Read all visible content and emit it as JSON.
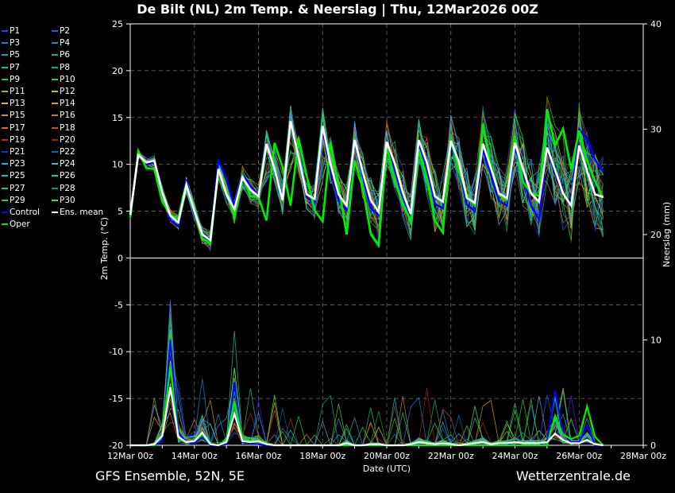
{
  "header": {
    "title": "De Bilt  (NL)  2m Temp. & Neerslag | Thu, 12Mar2026 00Z"
  },
  "footer": {
    "left": "GFS Ensemble, 52N, 5E",
    "right": "Wetterzentrale.de"
  },
  "legend": [
    {
      "label": "P1",
      "color": "#2a3cff"
    },
    {
      "label": "P2",
      "color": "#1a5cff"
    },
    {
      "label": "P3",
      "color": "#2a7ad8"
    },
    {
      "label": "P4",
      "color": "#1f86c8"
    },
    {
      "label": "P5",
      "color": "#18a0c8"
    },
    {
      "label": "P6",
      "color": "#13b0a0"
    },
    {
      "label": "P7",
      "color": "#16c090"
    },
    {
      "label": "P8",
      "color": "#10b070"
    },
    {
      "label": "P9",
      "color": "#18c850"
    },
    {
      "label": "P10",
      "color": "#20d820"
    },
    {
      "label": "P11",
      "color": "#88c020"
    },
    {
      "label": "P12",
      "color": "#c0c020"
    },
    {
      "label": "P13",
      "color": "#d8c030"
    },
    {
      "label": "P14",
      "color": "#d8a020"
    },
    {
      "label": "P15",
      "color": "#c89050"
    },
    {
      "label": "P16",
      "color": "#c08040"
    },
    {
      "label": "P17",
      "color": "#d07020"
    },
    {
      "label": "P18",
      "color": "#c05020"
    },
    {
      "label": "P19",
      "color": "#b03010"
    },
    {
      "label": "P20",
      "color": "#a02010"
    },
    {
      "label": "P21",
      "color": "#1830d0"
    },
    {
      "label": "P22",
      "color": "#1060c0"
    },
    {
      "label": "P23",
      "color": "#3aa0ff"
    },
    {
      "label": "P24",
      "color": "#60a8d8"
    },
    {
      "label": "P25",
      "color": "#20b8c8"
    },
    {
      "label": "P26",
      "color": "#20c8b0"
    },
    {
      "label": "P27",
      "color": "#20c880"
    },
    {
      "label": "P28",
      "color": "#10a050"
    },
    {
      "label": "P29",
      "color": "#30d040"
    },
    {
      "label": "P30",
      "color": "#40e040"
    },
    {
      "label": "Control",
      "color": "#0000ff"
    },
    {
      "label": "Ens. mean",
      "color": "#ffffff"
    },
    {
      "label": "Oper",
      "color": "#00ee00"
    }
  ],
  "chart_data": {
    "type": "line",
    "xlabel": "Date (UTC)",
    "ylabel": "2m Temp. (°C)",
    "y2label": "Neerslag (mm)",
    "x_tick_labels": [
      "12Mar 00z",
      "14Mar 00z",
      "16Mar 00z",
      "18Mar 00z",
      "20Mar 00z",
      "22Mar 00z",
      "24Mar 00z",
      "26Mar 00z",
      "28Mar 00z"
    ],
    "ylim": [
      -20,
      25
    ],
    "y_ticks": [
      25,
      20,
      15,
      10,
      5,
      0,
      -5,
      -10,
      -15,
      -20
    ],
    "y2lim": [
      0,
      40
    ],
    "y2_ticks": [
      40,
      30,
      20,
      10,
      0
    ],
    "step_hours": 6,
    "x_range_hours": [
      0,
      384
    ],
    "temp_mean": [
      4.6,
      11.0,
      10.2,
      10.4,
      7.0,
      4.5,
      3.8,
      7.8,
      5.0,
      2.5,
      1.9,
      9.5,
      6.8,
      5.2,
      8.6,
      7.3,
      6.6,
      12.2,
      9.5,
      6.2,
      14.6,
      10.7,
      6.8,
      6.3,
      14.1,
      10.0,
      6.8,
      5.6,
      12.6,
      9.2,
      6.2,
      4.9,
      12.4,
      10.1,
      7.0,
      4.7,
      12.6,
      10.2,
      6.6,
      6.0,
      12.5,
      10.3,
      6.4,
      5.9,
      12.2,
      9.6,
      6.9,
      6.4,
      12.3,
      9.5,
      6.9,
      6.0,
      11.8,
      9.4,
      6.9,
      5.6,
      12.0,
      9.3,
      6.8,
      6.5
    ],
    "temp_control": [
      4.6,
      11.0,
      10.0,
      10.2,
      7.2,
      4.0,
      3.4,
      8.4,
      4.6,
      2.3,
      1.8,
      10.4,
      8.5,
      5.5,
      9.0,
      7.6,
      6.7,
      12.3,
      9.5,
      6.5,
      14.4,
      10.6,
      6.5,
      5.8,
      13.8,
      9.5,
      6.1,
      5.1,
      12.5,
      8.8,
      5.3,
      4.6,
      12.2,
      9.6,
      6.3,
      4.1,
      12.1,
      9.7,
      5.8,
      5.3,
      12.0,
      9.6,
      5.7,
      5.0,
      11.6,
      8.9,
      6.1,
      5.6,
      12.0,
      8.8,
      5.6,
      4.1,
      11.8,
      9.0,
      6.9,
      5.7,
      13.7,
      12.8,
      10.5,
      9.2
    ],
    "temp_oper": [
      4.3,
      11.4,
      9.6,
      9.5,
      6.0,
      4.6,
      4.2,
      7.9,
      4.9,
      2.1,
      1.6,
      9.5,
      7.0,
      4.4,
      8.8,
      6.6,
      6.5,
      4.0,
      12.3,
      9.7,
      5.6,
      12.8,
      8.8,
      5.1,
      3.9,
      12.3,
      7.6,
      2.5,
      10.4,
      7.5,
      2.6,
      1.4,
      11.9,
      8.3,
      5.9,
      3.9,
      11.6,
      8.5,
      4.0,
      2.7,
      12.6,
      9.4,
      6.7,
      5.6,
      14.3,
      9.7,
      6.8,
      6.2,
      13.0,
      8.1,
      7.0,
      6.6,
      15.9,
      12.0,
      13.8,
      9.5,
      13.6,
      10.4,
      8.2,
      6.4
    ],
    "precip_mean": [
      0,
      0,
      0,
      0.1,
      0.9,
      5.5,
      0.8,
      0.3,
      0.4,
      1.2,
      0.1,
      0,
      0.3,
      3.0,
      0.4,
      0.3,
      0.4,
      0.1,
      0,
      0,
      0,
      0,
      0,
      0,
      0,
      0,
      0,
      0.2,
      0,
      0,
      0.1,
      0.1,
      0,
      0,
      0,
      0.1,
      0.3,
      0.2,
      0.1,
      0.2,
      0.1,
      0,
      0.1,
      0.2,
      0.3,
      0.1,
      0.2,
      0.2,
      0.3,
      0.2,
      0.2,
      0.2,
      0.3,
      1.1,
      0.5,
      0.2,
      0.2,
      0.5,
      0.1,
      0
    ],
    "precip_control": [
      0,
      0,
      0,
      0,
      0.4,
      10.0,
      1.2,
      0.3,
      0.2,
      0.8,
      0,
      0,
      0.1,
      6.0,
      0.3,
      0.2,
      0.1,
      0,
      0,
      0,
      0,
      0,
      0,
      0,
      0,
      0,
      0,
      0,
      0,
      0,
      0,
      0,
      0,
      0,
      0,
      0,
      0,
      0,
      0,
      0,
      0,
      0,
      0,
      0,
      0,
      0,
      0.2,
      0.1,
      0,
      0,
      0,
      0,
      0.4,
      5.2,
      1.1,
      0.3,
      0.3,
      1.9,
      0,
      0
    ],
    "precip_oper": [
      0,
      0,
      0,
      0,
      1.0,
      7.5,
      0.7,
      0.3,
      0.4,
      1.0,
      0.1,
      0,
      0.5,
      4.2,
      0.6,
      0.4,
      0.5,
      0.2,
      0,
      0,
      0,
      0,
      0,
      0,
      0,
      0,
      0,
      0,
      0,
      0,
      0,
      0,
      0,
      0,
      0,
      0,
      0,
      0,
      0,
      0,
      0,
      0,
      0,
      0,
      0,
      0,
      0,
      0,
      0,
      0,
      0,
      0,
      0,
      2.8,
      1.0,
      0.6,
      0.9,
      3.7,
      0.8,
      0
    ]
  }
}
